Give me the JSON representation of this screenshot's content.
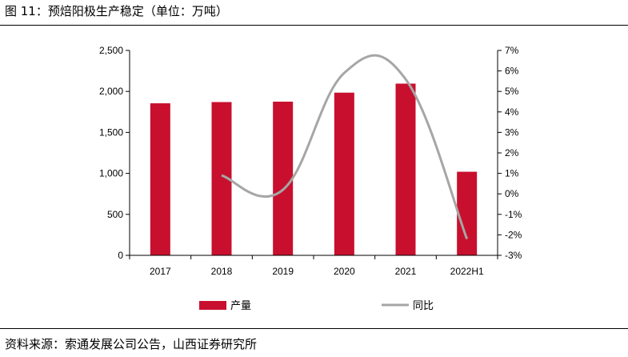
{
  "figure_title": "图 11：预焙阳极生产稳定（单位：万吨）",
  "source": "资料来源：索通发展公司公告，山西证券研究所",
  "colors": {
    "bar": "#C8102E",
    "line": "#A6A6A6",
    "axis": "#000000"
  },
  "chart_data": {
    "type": "bar",
    "categories": [
      "2017",
      "2018",
      "2019",
      "2020",
      "2021",
      "2022H1"
    ],
    "series": [
      {
        "name": "产量",
        "type": "bar",
        "axis": "left",
        "values": [
          1855,
          1870,
          1875,
          1985,
          2095,
          1020
        ]
      },
      {
        "name": "同比",
        "type": "line",
        "axis": "right",
        "unit": "%",
        "values": [
          null,
          0.9,
          0.2,
          5.9,
          5.6,
          -2.2
        ]
      }
    ],
    "y_left": {
      "range": [
        0,
        2500
      ],
      "ticks": [
        "0",
        "500",
        "1,000",
        "1,500",
        "2,000",
        "2,500"
      ]
    },
    "y_right": {
      "range": [
        -3,
        7
      ],
      "ticks": [
        "-3%",
        "-2%",
        "-1%",
        "0%",
        "1%",
        "2%",
        "3%",
        "4%",
        "5%",
        "6%",
        "7%"
      ]
    },
    "grid": false,
    "legend_position": "bottom"
  }
}
